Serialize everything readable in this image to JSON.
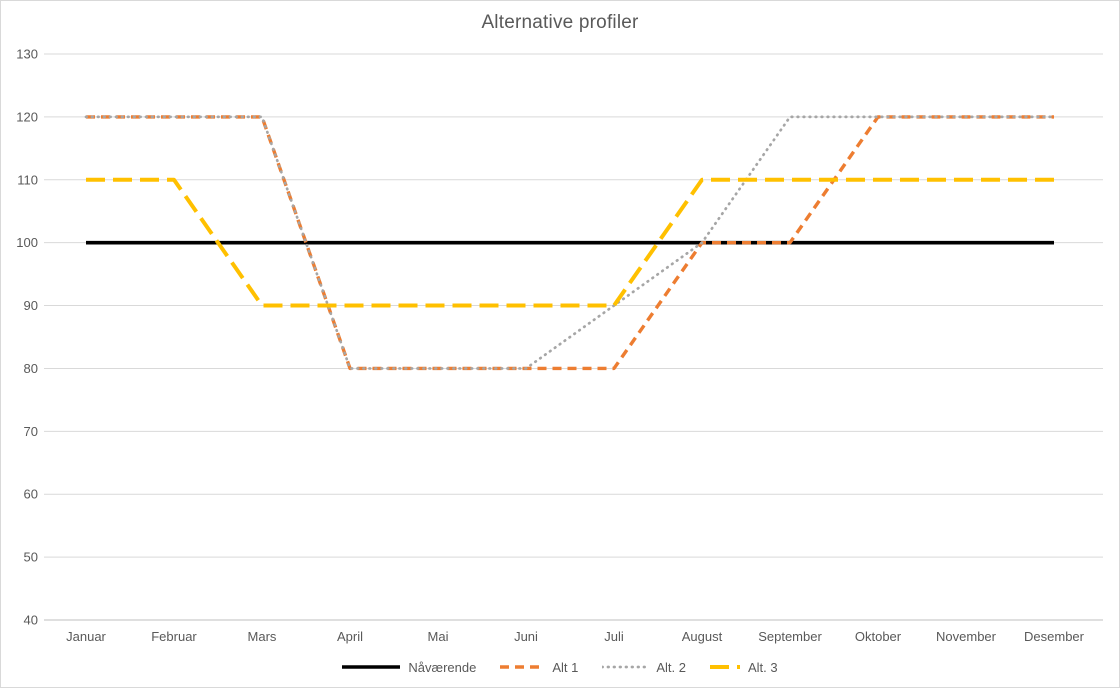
{
  "title": "Alternative profiler",
  "colors": {
    "title_text": "#595959",
    "axis_text": "#595959",
    "legend_text": "#595959",
    "gridline": "#d9d9d9",
    "axis_line": "#bfbfbf",
    "background": "#ffffff",
    "series_black": "#000000",
    "series_orange": "#ED7D31",
    "series_gray": "#A6A6A6",
    "series_gold": "#FFC000"
  },
  "chart_data": {
    "type": "line",
    "title": "Alternative profiler",
    "categories": [
      "Januar",
      "Februar",
      "Mars",
      "April",
      "Mai",
      "Juni",
      "Juli",
      "August",
      "September",
      "Oktober",
      "November",
      "Desember"
    ],
    "series": [
      {
        "name": "Nåværende",
        "color": "#000000",
        "line_style": "solid",
        "values": [
          100,
          100,
          100,
          100,
          100,
          100,
          100,
          100,
          100,
          100,
          100,
          100
        ]
      },
      {
        "name": "Alt 1",
        "color": "#ED7D31",
        "line_style": "dashed",
        "values": [
          120,
          120,
          120,
          80,
          80,
          80,
          80,
          100,
          100,
          120,
          120,
          120
        ]
      },
      {
        "name": "Alt. 2",
        "color": "#A6A6A6",
        "line_style": "dotted",
        "values": [
          120,
          120,
          120,
          80,
          80,
          80,
          90,
          100,
          120,
          120,
          120,
          120
        ]
      },
      {
        "name": "Alt. 3",
        "color": "#FFC000",
        "line_style": "long-dash",
        "values": [
          110,
          110,
          90,
          90,
          90,
          90,
          90,
          110,
          110,
          110,
          110,
          110
        ]
      }
    ],
    "xlabel": "",
    "ylabel": "",
    "ylim": [
      40,
      130
    ],
    "yticks": [
      130,
      120,
      110,
      100,
      90,
      80,
      70,
      60,
      50,
      40
    ],
    "grid": true,
    "legend_position": "bottom"
  }
}
